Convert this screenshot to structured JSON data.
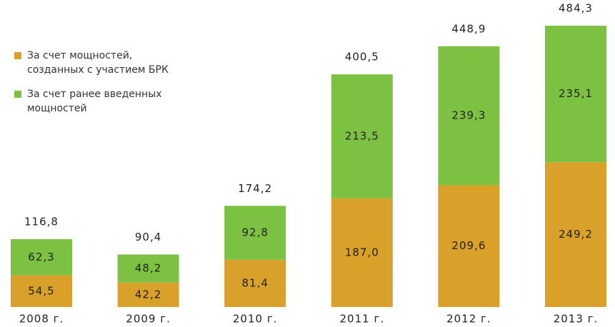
{
  "chart_data": {
    "type": "stacked_bar",
    "categories": [
      "2008 г.",
      "2009 г.",
      "2010 г.",
      "2011 г.",
      "2012 г.",
      "2013 г."
    ],
    "series": [
      {
        "name": "За счет мощностей, созданных с участием БРК",
        "color": "#d9a02a",
        "values": [
          54.5,
          42.2,
          81.4,
          187.0,
          209.6,
          249.2
        ],
        "value_labels": [
          "54,5",
          "42,2",
          "81,4",
          "187,0",
          "209,6",
          "249,2"
        ]
      },
      {
        "name": "За счет ранее введенных мощностей",
        "color": "#7dc142",
        "values": [
          62.3,
          48.2,
          92.8,
          213.5,
          239.3,
          235.1
        ],
        "value_labels": [
          "62,3",
          "48,2",
          "92,8",
          "213,5",
          "239,3",
          "235,1"
        ]
      }
    ],
    "totals": [
      116.8,
      90.4,
      174.2,
      400.5,
      448.9,
      484.3
    ],
    "total_labels": [
      "116,8",
      "90,4",
      "174,2",
      "400,5",
      "448,9",
      "484,3"
    ]
  }
}
